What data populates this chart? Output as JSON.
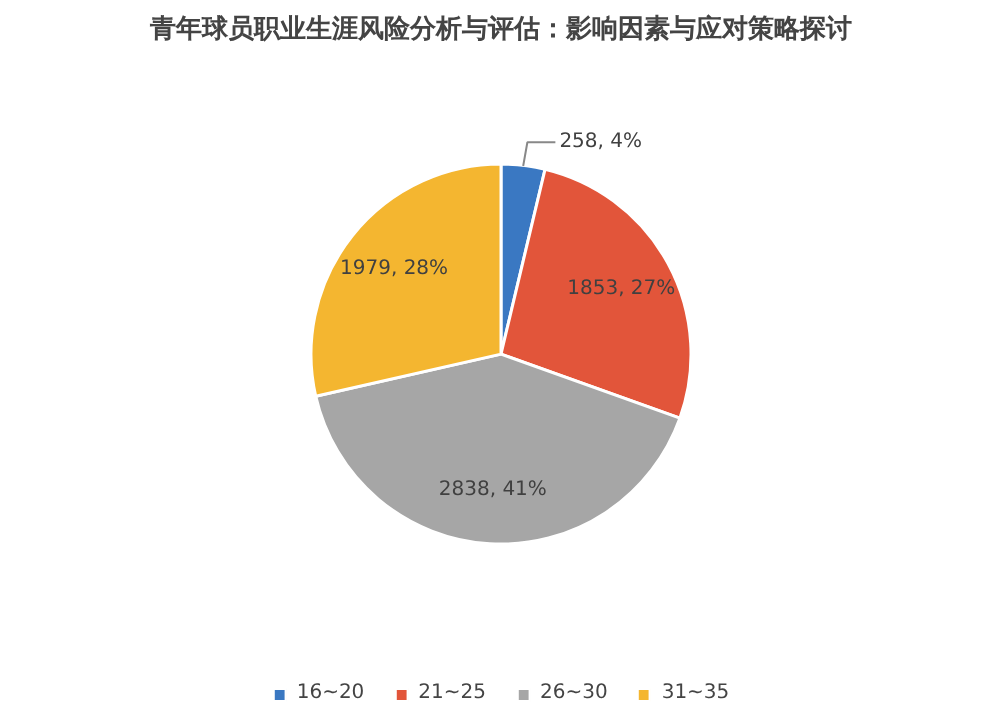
{
  "chart_data": {
    "type": "pie",
    "title": "青年球员职业生涯风险分析与评估：影响因素与应对策略探讨",
    "categories": [
      "16~20",
      "21~25",
      "26~30",
      "31~35"
    ],
    "values": [
      258,
      1853,
      2838,
      1979
    ],
    "colors": [
      "#3a78c2",
      "#e2553a",
      "#a6a6a6",
      "#f4b630"
    ],
    "value_labels": [
      "258, 4%",
      "1853, 27%",
      "2838, 41%",
      "1979, 28%"
    ],
    "legend": "bottom"
  }
}
